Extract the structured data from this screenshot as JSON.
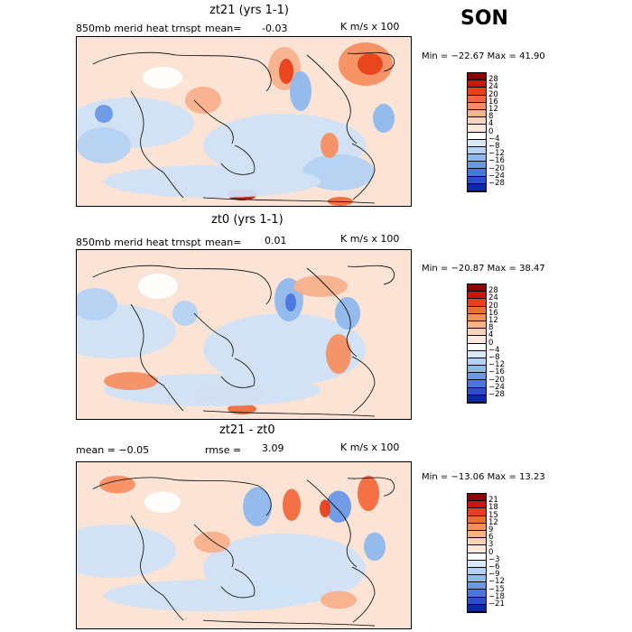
{
  "season": "SON",
  "panels": [
    {
      "title": "zt21 (yrs 1-1)",
      "left_label": "850mb merid heat trnspt",
      "mean_label": "mean=",
      "mean_value": "-0.03",
      "units": "K m/s x 100",
      "minmax": "Min = −22.67 Max =   41.90",
      "colorbar_labels": [
        "28",
        "24",
        "20",
        "16",
        "12",
        "8",
        "4",
        "0",
        "−4",
        "−8",
        "−12",
        "−16",
        "−20",
        "−24",
        "−28"
      ],
      "colorbar_colors": [
        "#8b0000",
        "#c41a0a",
        "#e8401a",
        "#f26a3c",
        "#f58f62",
        "#f8b08d",
        "#fbd2ba",
        "#fbe8dc",
        "#ffffff",
        "#d8e8f8",
        "#b4d2f3",
        "#8fb8ee",
        "#6a98e6",
        "#4a76de",
        "#2a4fcf",
        "#0c2aa8"
      ]
    },
    {
      "title": "zt0 (yrs 1-1)",
      "left_label": "850mb merid heat trnspt",
      "mean_label": "mean=",
      "mean_value": "0.01",
      "units": "K m/s x 100",
      "minmax": "Min = −20.87 Max =   38.47",
      "colorbar_labels": [
        "28",
        "24",
        "20",
        "16",
        "12",
        "8",
        "4",
        "0",
        "−4",
        "−8",
        "−12",
        "−16",
        "−20",
        "−24",
        "−28"
      ],
      "colorbar_colors": [
        "#8b0000",
        "#c41a0a",
        "#e8401a",
        "#f26a3c",
        "#f58f62",
        "#f8b08d",
        "#fbd2ba",
        "#fbe8dc",
        "#ffffff",
        "#d8e8f8",
        "#b4d2f3",
        "#8fb8ee",
        "#6a98e6",
        "#4a76de",
        "#2a4fcf",
        "#0c2aa8"
      ]
    },
    {
      "title": "zt21 - zt0",
      "left_label": "mean =   −0.05",
      "mean_label": "rmse =",
      "mean_value": "3.09",
      "units": "K m/s x 100",
      "minmax": "Min = −13.06 Max =   13.23",
      "colorbar_labels": [
        "21",
        "18",
        "15",
        "12",
        "9",
        "6",
        "3",
        "0",
        "−3",
        "−6",
        "−9",
        "−12",
        "−15",
        "−18",
        "−21"
      ],
      "colorbar_colors": [
        "#8b0000",
        "#c41a0a",
        "#e8401a",
        "#f26a3c",
        "#f58f62",
        "#f8b08d",
        "#fbd2ba",
        "#fbe8dc",
        "#ffffff",
        "#d8e8f8",
        "#b4d2f3",
        "#8fb8ee",
        "#6a98e6",
        "#4a76de",
        "#2a4fcf",
        "#0c2aa8"
      ]
    }
  ]
}
